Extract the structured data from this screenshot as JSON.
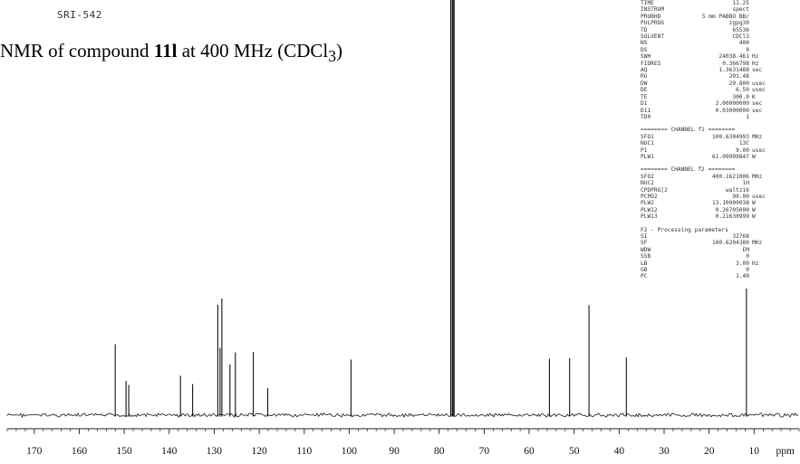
{
  "sample_id": "SRI-542",
  "caption": {
    "pre": "NMR of compound ",
    "compound": "11l",
    "mid": " at 400 MHz (CDCl",
    "sub": "3",
    "post": ")"
  },
  "params": {
    "acq": [
      {
        "k": "TIME",
        "v": "11.25",
        "u": ""
      },
      {
        "k": "INSTRUM",
        "v": "spect",
        "u": ""
      },
      {
        "k": "PROBHD",
        "v": "5 mm PABBO BB/",
        "u": ""
      },
      {
        "k": "PULPROG",
        "v": "zgpg30",
        "u": ""
      },
      {
        "k": "TD",
        "v": "65536",
        "u": ""
      },
      {
        "k": "SOLVENT",
        "v": "CDCl3",
        "u": ""
      },
      {
        "k": "NS",
        "v": "400",
        "u": ""
      },
      {
        "k": "DS",
        "v": "0",
        "u": ""
      },
      {
        "k": "SWH",
        "v": "24038.461",
        "u": "Hz"
      },
      {
        "k": "FIDRES",
        "v": "0.366798",
        "u": "Hz"
      },
      {
        "k": "AQ",
        "v": "1.3631488",
        "u": "sec"
      },
      {
        "k": "RG",
        "v": "201.48",
        "u": ""
      },
      {
        "k": "DW",
        "v": "20.800",
        "u": "usec"
      },
      {
        "k": "DE",
        "v": "6.50",
        "u": "usec"
      },
      {
        "k": "TE",
        "v": "300.0",
        "u": "K"
      },
      {
        "k": "D1",
        "v": "2.00000000",
        "u": "sec"
      },
      {
        "k": "D11",
        "v": "0.03000000",
        "u": "sec"
      },
      {
        "k": "TD0",
        "v": "1",
        "u": ""
      }
    ],
    "ch1_header": "======== CHANNEL f1 ========",
    "ch1": [
      {
        "k": "SFO1",
        "v": "100.6304993",
        "u": "MHz"
      },
      {
        "k": "NUC1",
        "v": "13C",
        "u": ""
      },
      {
        "k": "P1",
        "v": "9.00",
        "u": "usec"
      },
      {
        "k": "PLW1",
        "v": "61.09999847",
        "u": "W"
      }
    ],
    "ch2_header": "======== CHANNEL f2 ========",
    "ch2": [
      {
        "k": "SFO2",
        "v": "400.1621006",
        "u": "MHz"
      },
      {
        "k": "NUC2",
        "v": "1H",
        "u": ""
      },
      {
        "k": "CPDPRG[2",
        "v": "waltz16",
        "u": ""
      },
      {
        "k": "PCPD2",
        "v": "90.00",
        "u": "usec"
      },
      {
        "k": "PLW2",
        "v": "13.10000038",
        "u": "W"
      },
      {
        "k": "PLW12",
        "v": "0.26705000",
        "u": "W"
      },
      {
        "k": "PLW13",
        "v": "0.21630999",
        "u": "W"
      }
    ],
    "proc_header": "F2 - Processing parameters",
    "proc": [
      {
        "k": "SI",
        "v": "32768",
        "u": ""
      },
      {
        "k": "SF",
        "v": "100.6204380",
        "u": "MHz"
      },
      {
        "k": "WDW",
        "v": "EM",
        "u": ""
      },
      {
        "k": "SSB",
        "v": "0",
        "u": ""
      },
      {
        "k": "LB",
        "v": "3.00",
        "u": "Hz"
      },
      {
        "k": "GB",
        "v": "0",
        "u": ""
      },
      {
        "k": "PC",
        "v": "1.40",
        "u": ""
      }
    ]
  },
  "chart_data": {
    "type": "line",
    "xlabel": "ppm",
    "xlim": [
      176,
      0
    ],
    "x_ticks": [
      170,
      160,
      150,
      140,
      130,
      120,
      110,
      100,
      90,
      80,
      70,
      60,
      50,
      40,
      30,
      20,
      10
    ],
    "x_tick_labels": [
      "170",
      "160",
      "150",
      "140",
      "130",
      "120",
      "110",
      "100",
      "90",
      "80",
      "70",
      "60",
      "50",
      "40",
      "30",
      "20",
      "10"
    ],
    "peaks": [
      {
        "ppm": 152.0,
        "height": 0.171
      },
      {
        "ppm": 149.6,
        "height": 0.083
      },
      {
        "ppm": 149.0,
        "height": 0.073
      },
      {
        "ppm": 137.5,
        "height": 0.095
      },
      {
        "ppm": 134.8,
        "height": 0.075
      },
      {
        "ppm": 129.2,
        "height": 0.266
      },
      {
        "ppm": 128.7,
        "height": 0.162
      },
      {
        "ppm": 128.3,
        "height": 0.281
      },
      {
        "ppm": 126.5,
        "height": 0.122
      },
      {
        "ppm": 125.3,
        "height": 0.151
      },
      {
        "ppm": 121.3,
        "height": 0.152
      },
      {
        "ppm": 118.1,
        "height": 0.065
      },
      {
        "ppm": 99.6,
        "height": 0.134
      },
      {
        "ppm": 77.4,
        "height": 1.0
      },
      {
        "ppm": 77.0,
        "height": 1.0
      },
      {
        "ppm": 76.7,
        "height": 1.0
      },
      {
        "ppm": 55.5,
        "height": 0.136
      },
      {
        "ppm": 51.0,
        "height": 0.137
      },
      {
        "ppm": 46.7,
        "height": 0.265
      },
      {
        "ppm": 38.4,
        "height": 0.139
      },
      {
        "ppm": 11.7,
        "height": 0.305
      }
    ]
  }
}
